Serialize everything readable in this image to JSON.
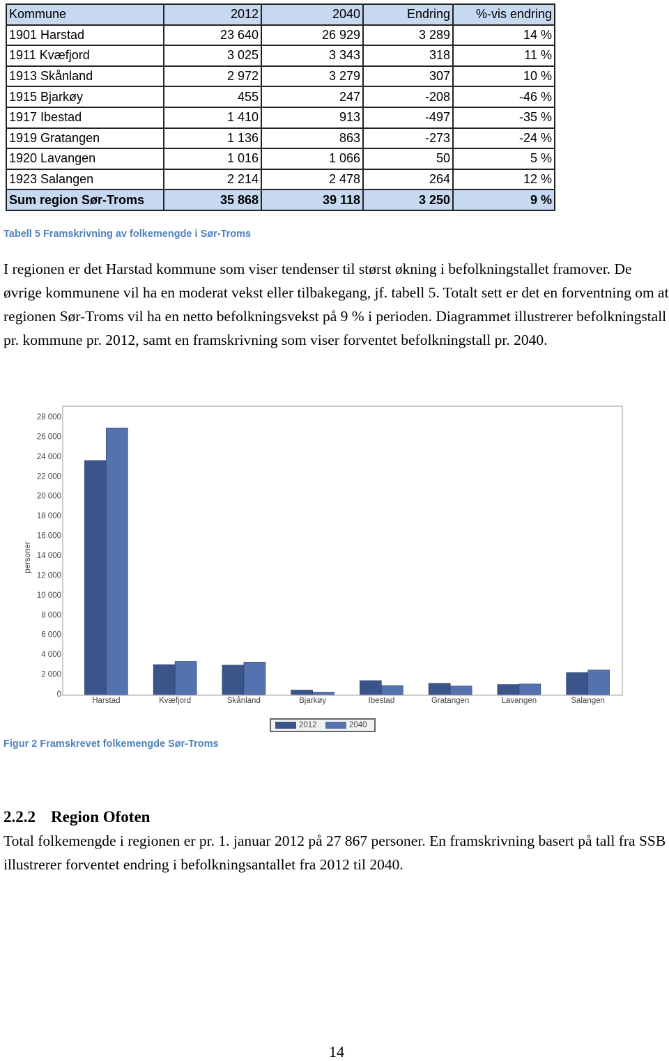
{
  "table": {
    "header": [
      "Kommune",
      "2012",
      "2040",
      "Endring",
      "%-vis endring"
    ],
    "rows": [
      [
        "1901 Harstad",
        "23 640",
        "26 929",
        "3 289",
        "14 %"
      ],
      [
        "1911 Kvæfjord",
        "3 025",
        "3 343",
        "318",
        "11 %"
      ],
      [
        "1913 Skånland",
        "2 972",
        "3 279",
        "307",
        "10 %"
      ],
      [
        "1915 Bjarkøy",
        "455",
        "247",
        "-208",
        "-46 %"
      ],
      [
        "1917 Ibestad",
        "1 410",
        "913",
        "-497",
        "-35 %"
      ],
      [
        "1919 Gratangen",
        "1 136",
        "863",
        "-273",
        "-24 %"
      ],
      [
        "1920 Lavangen",
        "1 016",
        "1 066",
        "50",
        "5 %"
      ],
      [
        "1923 Salangen",
        "2 214",
        "2 478",
        "264",
        "12 %"
      ]
    ],
    "total": [
      "Sum region Sør-Troms",
      "35 868",
      "39 118",
      "3 250",
      "9 %"
    ]
  },
  "table_caption": "Tabell 5 Framskrivning av folkemengde i Sør-Troms",
  "paragraph1": "I regionen er det Harstad kommune som viser tendenser til størst økning i befolkningstallet framover. De øvrige kommunene vil ha en moderat vekst eller tilbakegang, jf. tabell 5. Totalt sett er det en forventning om at regionen Sør-Troms vil ha en netto befolkningsvekst på 9 % i perioden. Diagrammet illustrerer befolkningstall pr. kommune pr. 2012, samt en framskrivning som viser forventet befolkningstall pr. 2040.",
  "chart_data": {
    "type": "bar",
    "y_label": "personer",
    "categories": [
      "Harstad",
      "Kvæfjord",
      "Skånland",
      "Bjarkøy",
      "Ibestad",
      "Gratangen",
      "Lavangen",
      "Salangen"
    ],
    "series": [
      {
        "name": "2012",
        "color": "#3b5489",
        "values": [
          23640,
          3025,
          2972,
          455,
          1410,
          1136,
          1016,
          2214
        ]
      },
      {
        "name": "2040",
        "color": "#5472ae",
        "values": [
          26929,
          3343,
          3279,
          247,
          913,
          863,
          1066,
          2478
        ]
      }
    ],
    "ylim": [
      0,
      28000
    ],
    "yticks": [
      {
        "value": 0,
        "label": "0"
      },
      {
        "value": 2000,
        "label": "2 000"
      },
      {
        "value": 4000,
        "label": "4 000"
      },
      {
        "value": 6000,
        "label": "6 000"
      },
      {
        "value": 8000,
        "label": "8 000"
      },
      {
        "value": 10000,
        "label": "10 000"
      },
      {
        "value": 12000,
        "label": "12 000"
      },
      {
        "value": 14000,
        "label": "14 000"
      },
      {
        "value": 16000,
        "label": "16 000"
      },
      {
        "value": 18000,
        "label": "18 000"
      },
      {
        "value": 20000,
        "label": "20 000"
      },
      {
        "value": 22000,
        "label": "22 000"
      },
      {
        "value": 24000,
        "label": "24 000"
      },
      {
        "value": 26000,
        "label": "26 000"
      },
      {
        "value": 28000,
        "label": "28 000"
      }
    ]
  },
  "figure_caption": "Figur 2 Framskrevet folkemengde Sør-Troms",
  "section": {
    "number": "2.2.2",
    "title": "Region Ofoten"
  },
  "paragraph2": "Total folkemengde i regionen er pr. 1. januar 2012 på 27 867 personer. En framskrivning basert på tall fra SSB illustrerer forventet endring i befolkningsantallet fra 2012 til 2040.",
  "page_number": "14"
}
